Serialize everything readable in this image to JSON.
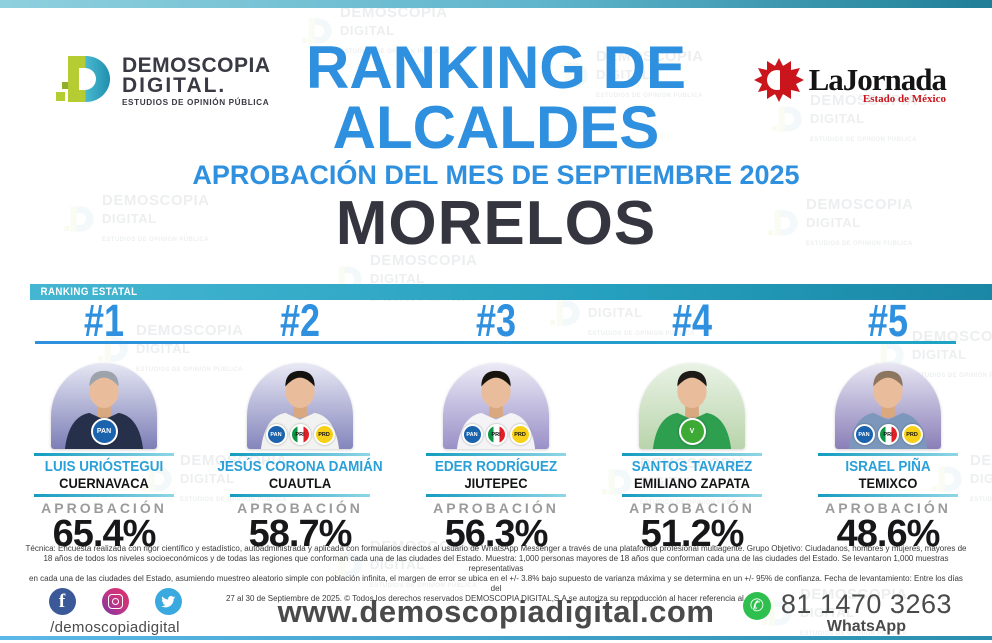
{
  "header": {
    "brand": {
      "name": "DEMOSCOPIA",
      "name2": "DIGITAL.",
      "tagline": "ESTUDIOS DE OPINIÓN PÚBLICA"
    },
    "title_line1": "RANKING DE",
    "title_line2": "ALCALDES",
    "subtitle": "APROBACIÓN DEL MES DE SEPTIEMBRE 2025",
    "state": "MORELOS",
    "partner": {
      "name": "LaJornada",
      "edition": "Estado de México"
    }
  },
  "ranking": {
    "section_label": "RANKING ESTATAL",
    "approval_label": "APROBACIÓN",
    "items": [
      {
        "rank": "#1",
        "name": "LUIS URIÓSTEGUI",
        "city": "CUERNAVACA",
        "approval": "65.4%",
        "parties": [
          "PAN"
        ],
        "photo": {
          "bg_top": "#e6e7f4",
          "bg_bottom": "#7c7eb6",
          "shirt": "#26304b",
          "hair": "#9ca3ab"
        }
      },
      {
        "rank": "#2",
        "name": "JESÚS CORONA DAMIÁN",
        "city": "CUAUTLA",
        "approval": "58.7%",
        "parties": [
          "PAN",
          "PRI",
          "PRD"
        ],
        "photo": {
          "bg_top": "#e9e9f5",
          "bg_bottom": "#8486bc",
          "shirt": "#f2f2f0",
          "hair": "#14120f"
        }
      },
      {
        "rank": "#3",
        "name": "EDER RODRÍGUEZ",
        "city": "JIUTEPEC",
        "approval": "56.3%",
        "parties": [
          "PAN",
          "PRI",
          "PRD"
        ],
        "photo": {
          "bg_top": "#ecebf6",
          "bg_bottom": "#9a90c8",
          "shirt": "#f4f4f6",
          "hair": "#17130f"
        }
      },
      {
        "rank": "#4",
        "name": "SANTOS TAVAREZ",
        "city": "EMILIANO ZAPATA",
        "approval": "51.2%",
        "parties": [
          "PVEM"
        ],
        "photo": {
          "bg_top": "#eaf3e6",
          "bg_bottom": "#b9d4ac",
          "shirt": "#2e9e4f",
          "hair": "#1e1a18"
        }
      },
      {
        "rank": "#5",
        "name": "ISRAEL PIÑA",
        "city": "TEMIXCO",
        "approval": "48.6%",
        "parties": [
          "PAN",
          "PRI",
          "PRD"
        ],
        "photo": {
          "bg_top": "#e8e6f3",
          "bg_bottom": "#8a7fb8",
          "shirt": "#7c97bc",
          "hair": "#8c7660"
        }
      }
    ]
  },
  "footnote": {
    "lines": [
      "Técnica: Encuesta realizada con rigor científico y estadístico, autoadministrada y aplicada con formularios directos al usuario de WhatsApp Messenger a través de una plataforma profesional multiagente. Grupo Objetivo: Ciudadanos, hombres y mujeres, mayores de",
      "18 años de todos los niveles socioeconómicos y de todas las regiones que conforman cada una de las ciudades del Estado. Muestra: 1,000 personas mayores de 18 años que conforman cada una de las ciudades del Estado. Se levantaron 1,000 muestras representativas",
      "en cada una de las ciudades del Estado, asumiendo muestreo aleatorio simple con población infinita, el margen de error se ubica en el +/- 3.8% bajo supuesto de varianza máxima y se determina en un +/- 95% de confianza. Fecha de levantamiento: Entre los días del",
      "27 al 30 de Septiembre de 2025. © Todos los derechos reservados DEMOSCOPIA DIGITAL,S.A se autoriza su reproducción al hacer referencia al autor."
    ]
  },
  "footer": {
    "social_handle": "/demoscopiadigital",
    "website": "www.demoscopiadigital.com",
    "whatsapp_number": "81 1470 3263",
    "whatsapp_label": "WhatsApp"
  },
  "watermark": {
    "line1": "DEMOSCOPIA",
    "line2": "DIGITAL",
    "line3": "ESTUDIOS DE OPINIÓN PÚBLICA"
  },
  "colors": {
    "accent_blue": "#2e90de",
    "teal_bar": "#25a0be",
    "state_dark": "#35353f",
    "gray_label": "#9b9b9b",
    "jornada_red": "#c9151b",
    "whatsapp_green": "#2fbf4e",
    "pan_blue": "#1b63ad",
    "pri_green": "#0b9444",
    "pri_red": "#e01f26",
    "prd_yellow": "#f7d117",
    "pvem_green": "#3daa35"
  }
}
